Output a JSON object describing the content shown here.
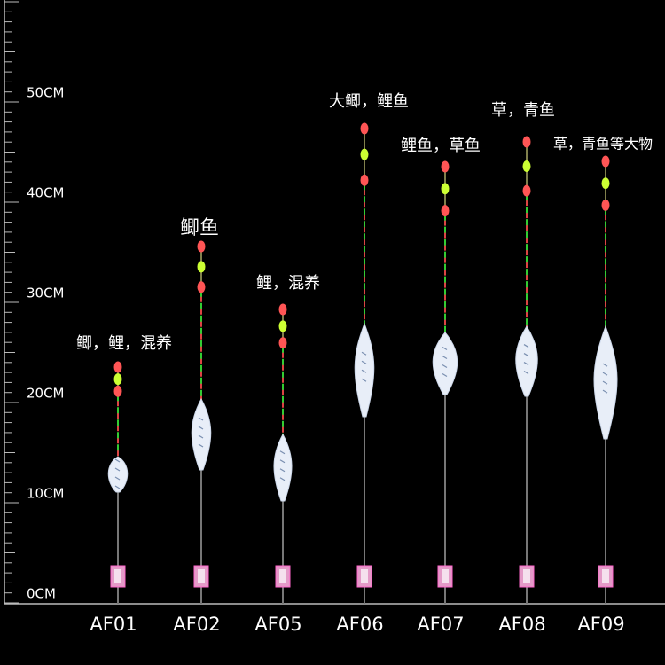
{
  "ruler": {
    "labels": [
      "0CM",
      "10CM",
      "20CM",
      "30CM",
      "40CM",
      "50CM"
    ]
  },
  "floats": [
    {
      "name": "AF01",
      "caption": "鲫，鲤，混养"
    },
    {
      "name": "AF02",
      "caption": "鲫鱼"
    },
    {
      "name": "AF05",
      "caption": "鲤，混养"
    },
    {
      "name": "AF06",
      "caption": "大鲫，鲤鱼"
    },
    {
      "name": "AF07",
      "caption": "鲤鱼，草鱼"
    },
    {
      "name": "AF08",
      "caption": "草，青鱼"
    },
    {
      "name": "AF09",
      "caption": "草，青鱼等大物"
    }
  ]
}
